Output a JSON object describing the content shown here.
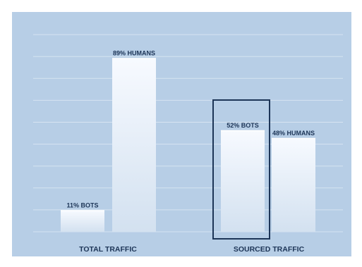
{
  "chart_data": {
    "type": "bar",
    "categories": [
      "TOTAL TRAFFIC",
      "SOURCED TRAFFIC"
    ],
    "bars": [
      {
        "category": "TOTAL TRAFFIC",
        "value": 11,
        "label": "11% BOTS"
      },
      {
        "category": "TOTAL TRAFFIC",
        "value": 89,
        "label": "89% HUMANS"
      },
      {
        "category": "SOURCED TRAFFIC",
        "value": 52,
        "label": "52% BOTS"
      },
      {
        "category": "SOURCED TRAFFIC",
        "value": 48,
        "label": "48% HUMANS"
      }
    ],
    "ylim": [
      0,
      100
    ],
    "highlighted_bar": "52% BOTS",
    "grid": true,
    "legend": "none",
    "colors": {
      "panel": "#b7cee6",
      "grid": "#d6e3f1",
      "bar_top": "#f7faff",
      "bar_bottom": "#d3e1f0",
      "text": "#1d3557",
      "highlight": "#1d3557"
    }
  }
}
